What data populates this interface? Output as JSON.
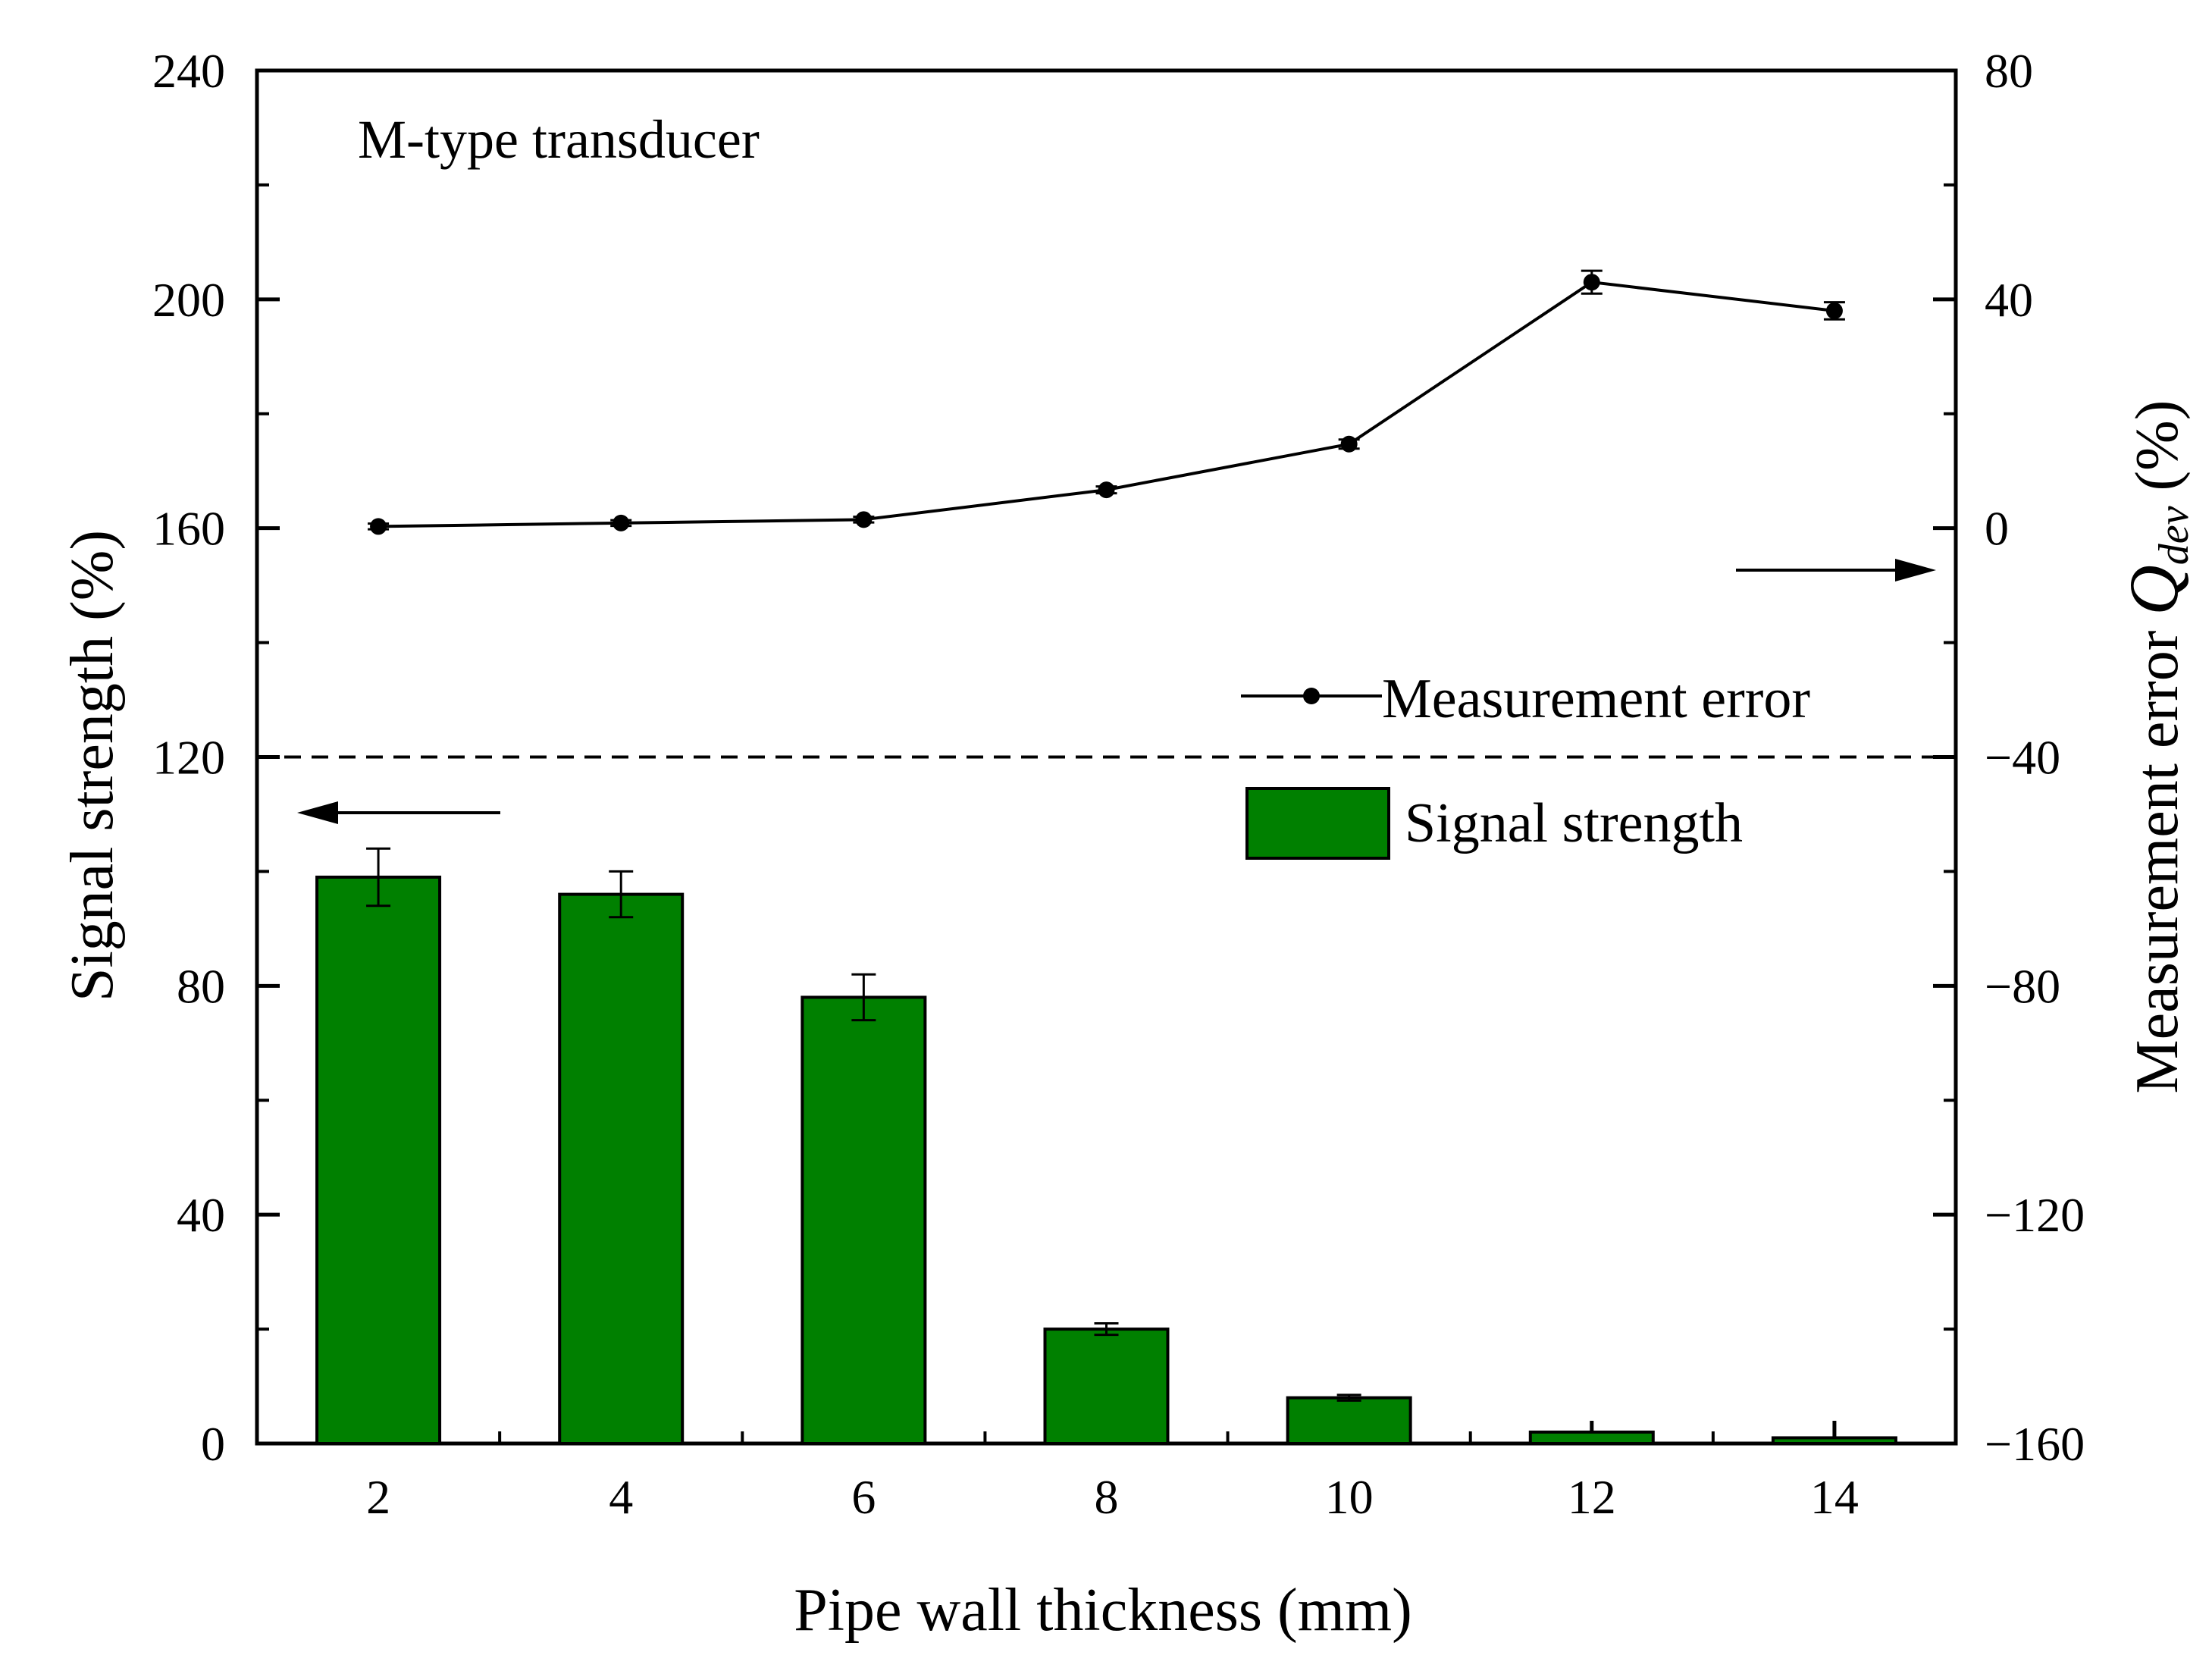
{
  "chart_data": {
    "type": "bar",
    "annotation": "M-type transducer",
    "xlabel": "Pipe wall thickness (mm)",
    "ylabel_left": "Signal strength (%)",
    "ylabel_right": {
      "prefix": "Measurement error ",
      "symbol": "Q",
      "subscript": "dev",
      "suffix": " (%)"
    },
    "categories": [
      "2",
      "4",
      "6",
      "8",
      "10",
      "12",
      "14"
    ],
    "x_ticks": [
      "2",
      "4",
      "6",
      "8",
      "10",
      "12",
      "14"
    ],
    "y_left": {
      "lim": [
        0,
        240
      ],
      "ticks": [
        "0",
        "40",
        "80",
        "120",
        "160",
        "200",
        "240"
      ]
    },
    "y_right": {
      "lim": [
        -160,
        80
      ],
      "ticks": [
        "−160",
        "−120",
        "−80",
        "−40",
        "0",
        "40",
        "80"
      ]
    },
    "reference_line": {
      "axis": "left",
      "value": 120,
      "style": "dashed"
    },
    "grid": false,
    "series": [
      {
        "name": "Signal strength",
        "type": "bar",
        "axis": "left",
        "color": "#008000",
        "x": [
          2,
          4,
          6,
          8,
          10,
          12,
          14
        ],
        "values": [
          99,
          96,
          78,
          20,
          8,
          2,
          1
        ],
        "error": [
          5,
          4,
          4,
          1,
          0.5,
          0,
          0
        ]
      },
      {
        "name": "Measurement error",
        "type": "line",
        "axis": "right",
        "color": "#000000",
        "marker": "circle",
        "x": [
          2,
          4,
          6,
          8,
          10,
          12,
          14
        ],
        "values": [
          0.3,
          0.9,
          1.5,
          6.7,
          14.7,
          43,
          38
        ],
        "error": [
          0.5,
          0.5,
          0.5,
          0.6,
          0.8,
          2,
          1.5
        ]
      }
    ],
    "legend": {
      "position": "middle-right",
      "entries": [
        "Measurement error",
        "Signal strength"
      ]
    },
    "arrows": [
      {
        "points_to": "left axis",
        "label": ""
      },
      {
        "points_to": "right axis",
        "label": ""
      }
    ]
  }
}
